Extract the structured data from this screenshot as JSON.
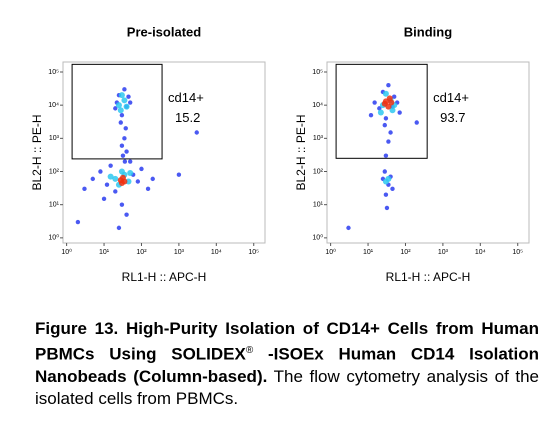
{
  "chart_data": [
    {
      "type": "scatter",
      "title": "Pre-isolated",
      "x_label": "RL1-H :: APC-H",
      "y_label": "BL2-H :: PE-H",
      "xscale": "log",
      "yscale": "log",
      "xlim": [
        0.8,
        200000
      ],
      "ylim": [
        0.7,
        200000
      ],
      "xticks": [
        {
          "value": 1,
          "label": "10⁰"
        },
        {
          "value": 10,
          "label": "10¹"
        },
        {
          "value": 100,
          "label": "10²"
        },
        {
          "value": 1000,
          "label": "10³"
        },
        {
          "value": 10000,
          "label": "10⁴"
        },
        {
          "value": 100000,
          "label": "10⁵"
        }
      ],
      "yticks": [
        {
          "value": 1,
          "label": "10⁰"
        },
        {
          "value": 10,
          "label": "10¹"
        },
        {
          "value": 100,
          "label": "10²"
        },
        {
          "value": 1000,
          "label": "10³"
        },
        {
          "value": 10000,
          "label": "10⁴"
        },
        {
          "value": 100000,
          "label": "10⁵"
        }
      ],
      "gate": {
        "label": "cd14+",
        "value": 15.2,
        "x": [
          1.4,
          355
        ],
        "y": [
          240,
          170000
        ]
      },
      "series": [
        {
          "color": "#2a3cf0",
          "x": [
            20,
            40,
            25,
            45,
            30,
            35,
            22,
            50,
            28,
            38,
            35,
            30,
            40,
            32,
            36,
            5,
            8,
            12,
            15,
            20,
            60,
            80,
            100,
            50,
            10,
            30,
            40,
            25,
            3,
            200,
            150,
            1000,
            3000,
            2
          ],
          "y": [
            8000,
            9000,
            20000,
            18000,
            5000,
            30000,
            12000,
            12000,
            3000,
            2000,
            1000,
            600,
            400,
            300,
            200,
            60,
            100,
            40,
            150,
            25,
            80,
            50,
            120,
            200,
            15,
            10,
            5,
            2,
            30,
            60,
            30,
            80,
            1500,
            3
          ]
        },
        {
          "color": "#2ec8f0",
          "x": [
            25,
            35,
            30,
            40,
            28,
            20,
            35,
            25,
            45,
            30,
            15,
            50
          ],
          "y": [
            10000,
            14000,
            20000,
            9000,
            7000,
            60,
            80,
            40,
            50,
            100,
            70,
            90
          ]
        },
        {
          "color": "#f03010",
          "x": [
            28,
            32,
            30,
            35
          ],
          "y": [
            55,
            65,
            45,
            50
          ]
        }
      ]
    },
    {
      "type": "scatter",
      "title": "Binding",
      "x_label": "RL1-H :: APC-H",
      "y_label": "BL2-H :: PE-H",
      "xscale": "log",
      "yscale": "log",
      "xlim": [
        0.8,
        200000
      ],
      "ylim": [
        0.7,
        200000
      ],
      "xticks": [
        {
          "value": 1,
          "label": "10⁰"
        },
        {
          "value": 10,
          "label": "10¹"
        },
        {
          "value": 100,
          "label": "10²"
        },
        {
          "value": 1000,
          "label": "10³"
        },
        {
          "value": 10000,
          "label": "10⁴"
        },
        {
          "value": 100000,
          "label": "10⁵"
        }
      ],
      "yticks": [
        {
          "value": 1,
          "label": "10⁰"
        },
        {
          "value": 10,
          "label": "10¹"
        },
        {
          "value": 100,
          "label": "10²"
        },
        {
          "value": 1000,
          "label": "10³"
        },
        {
          "value": 10000,
          "label": "10⁴"
        },
        {
          "value": 100000,
          "label": "10⁵"
        }
      ],
      "gate": {
        "label": "cd14+",
        "value": 93.7,
        "x": [
          1.4,
          380
        ],
        "y": [
          250,
          170000
        ]
      },
      "series": [
        {
          "color": "#2a3cf0",
          "x": [
            20,
            45,
            25,
            50,
            30,
            35,
            15,
            60,
            28,
            40,
            70,
            12,
            35,
            30,
            28,
            35,
            25,
            40,
            30,
            45,
            32,
            200,
            3
          ],
          "y": [
            8000,
            9000,
            25000,
            18000,
            4000,
            40000,
            12000,
            12000,
            2500,
            1500,
            6000,
            5000,
            800,
            300,
            100,
            40,
            60,
            70,
            20,
            30,
            8,
            3000,
            2
          ]
        },
        {
          "color": "#2ec8f0",
          "x": [
            25,
            40,
            30,
            50,
            22,
            45,
            30,
            35
          ],
          "y": [
            10000,
            14000,
            22000,
            10000,
            6000,
            7000,
            50,
            60
          ]
        },
        {
          "color": "#f03010",
          "x": [
            30,
            38,
            28,
            35,
            42
          ],
          "y": [
            13000,
            16000,
            11000,
            9000,
            12000
          ]
        }
      ]
    }
  ],
  "caption": {
    "bold": "Figure 13. High-Purity Isolation of CD14+ Cells from Human PBMCs Using SOLIDEX",
    "mark": "®",
    "bold_rest": "-ISOEx Human CD14 Isolation Nanobeads (Column-based).",
    "text": "The flow cytometry analysis of the isolated cells from  PBMCs."
  }
}
